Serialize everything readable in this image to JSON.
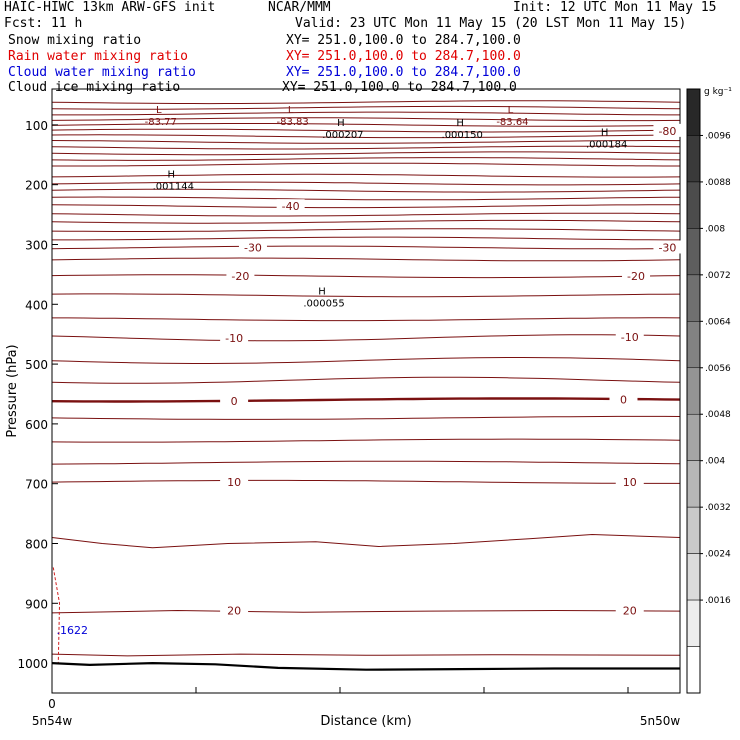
{
  "header": {
    "model": "HAIC-HIWC 13km ARW-GFS init",
    "org": "NCAR/MMM",
    "init": "Init: 12 UTC Mon 11 May 15",
    "fcst": "Fcst:   11 h",
    "valid": "Valid: 23 UTC Mon 11 May 15 (20 LST Mon 11 May 15)",
    "fields": [
      {
        "name": "Snow mixing ratio",
        "xy": "XY= 251.0,100.0 to 284.7,100.0",
        "color": "#000000"
      },
      {
        "name": "Rain water mixing ratio",
        "xy": "XY= 251.0,100.0 to 284.7,100.0",
        "color": "#e00000"
      },
      {
        "name": "Cloud water mixing ratio",
        "xy": "XY= 251.0,100.0 to 284.7,100.0",
        "color": "#0000d8"
      },
      {
        "name": "Cloud ice mixing ratio",
        "xy": "XY= 251.0,100.0 to 284.7,100.0",
        "color": "#000000"
      }
    ]
  },
  "chart_data": {
    "type": "line",
    "ylabel": "Pressure (hPa)",
    "xlabel": "Distance (km)",
    "yticks": [
      100,
      200,
      300,
      400,
      500,
      600,
      700,
      800,
      900,
      1000
    ],
    "ylim": [
      1050,
      40
    ],
    "xticks": [
      0
    ],
    "x_end_labels": [
      "5n54w",
      "5n50w"
    ],
    "contour_color": "#7a1010",
    "contour_labels": [
      {
        "text": "-80",
        "x": 0.98,
        "p": 110
      },
      {
        "text": "-40",
        "x": 0.38,
        "p": 236
      },
      {
        "text": "-30",
        "x": 0.32,
        "p": 305
      },
      {
        "text": "-30",
        "x": 0.98,
        "p": 305
      },
      {
        "text": "-20",
        "x": 0.3,
        "p": 353
      },
      {
        "text": "-20",
        "x": 0.93,
        "p": 353
      },
      {
        "text": "-10",
        "x": 0.29,
        "p": 456
      },
      {
        "text": "-10",
        "x": 0.92,
        "p": 455
      },
      {
        "text": "0",
        "x": 0.29,
        "p": 562
      },
      {
        "text": "0",
        "x": 0.91,
        "p": 559
      },
      {
        "text": "10",
        "x": 0.29,
        "p": 697
      },
      {
        "text": "10",
        "x": 0.92,
        "p": 697
      },
      {
        "text": "20",
        "x": 0.29,
        "p": 912
      },
      {
        "text": "20",
        "x": 0.92,
        "p": 912
      }
    ],
    "extrema": [
      {
        "mark": "L",
        "value": "-83.77",
        "x": 0.17,
        "p": 80
      },
      {
        "mark": "L",
        "value": "-83.83",
        "x": 0.38,
        "p": 80
      },
      {
        "mark": "L",
        "value": "-83.64",
        "x": 0.73,
        "p": 80
      },
      {
        "mark": "H",
        "value": ".000207",
        "x": 0.46,
        "p": 102
      },
      {
        "mark": "H",
        "value": ".000150",
        "x": 0.65,
        "p": 102
      },
      {
        "mark": "H",
        "value": ".000184",
        "x": 0.88,
        "p": 118
      },
      {
        "mark": "H",
        "value": ".001144",
        "x": 0.19,
        "p": 188
      },
      {
        "mark": "H",
        "value": ".000055",
        "x": 0.43,
        "p": 384
      }
    ],
    "cloud_water_label": {
      "text": ".1622",
      "x": 0.01,
      "p": 945
    },
    "colorbar": {
      "unit": "g kg⁻¹",
      "labels": [
        ".0096",
        ".0088",
        ".008",
        ".0072",
        ".0064",
        ".0056",
        ".0048",
        ".004",
        ".0032",
        ".0024",
        ".0016"
      ]
    }
  }
}
